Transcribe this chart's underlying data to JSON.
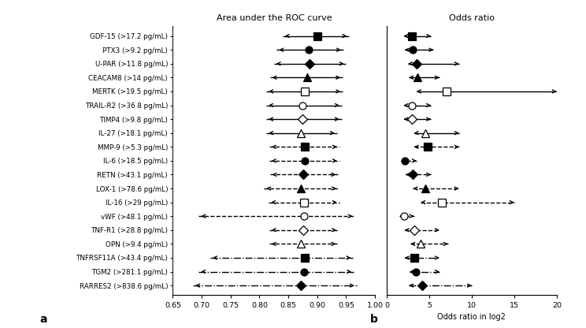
{
  "labels": [
    "GDF-15 (>17.2 pg/mL)",
    "PTX3 (>9.2 pg/mL)",
    "U-PAR (>11.8 pg/mL)",
    "CEACAM8 (>14 pg/mL)",
    "MERTK (>19.5 pg/mL)",
    "TRAIL-R2 (>36.8 pg/mL)",
    "TIMP4 (>9.8 pg/mL)",
    "IL-27 (>18.1 pg/mL)",
    "MMP-9 (>5.3 pg/mL)",
    "IL-6 (>18.5 pg/mL)",
    "RETN (>43.1 pg/mL)",
    "LOX-1 (>78.6 pg/mL)",
    "IL-16 (>29 pg/mL)",
    "vWF (>48.1 pg/mL)",
    "TNF-R1 (>28.8 pg/mL)",
    "OPN (>9.4 pg/mL)",
    "TNFRSF11A (>43.4 pg/mL)",
    "TGM2 (>281.1 pg/mL)",
    "RARRES2 (>838.6 pg/mL)"
  ],
  "auc_center": [
    0.9,
    0.885,
    0.887,
    0.882,
    0.878,
    0.875,
    0.875,
    0.872,
    0.878,
    0.878,
    0.876,
    0.872,
    0.877,
    0.877,
    0.876,
    0.872,
    0.878,
    0.877,
    0.871
  ],
  "auc_lo": [
    0.84,
    0.83,
    0.825,
    0.818,
    0.812,
    0.812,
    0.812,
    0.812,
    0.817,
    0.817,
    0.818,
    0.808,
    0.816,
    0.695,
    0.817,
    0.817,
    0.715,
    0.695,
    0.685
  ],
  "auc_hi": [
    0.955,
    0.945,
    0.95,
    0.944,
    0.944,
    0.942,
    0.942,
    0.934,
    0.938,
    0.938,
    0.936,
    0.937,
    0.938,
    0.965,
    0.937,
    0.936,
    0.962,
    0.963,
    0.968
  ],
  "or_center": [
    3.0,
    3.1,
    3.5,
    3.6,
    7.0,
    3.0,
    3.0,
    4.5,
    4.8,
    2.1,
    3.1,
    4.5,
    6.5,
    2.0,
    3.2,
    4.0,
    3.2,
    3.4,
    4.2
  ],
  "or_lo": [
    2.0,
    2.1,
    2.5,
    2.6,
    3.5,
    2.0,
    2.0,
    3.2,
    3.2,
    1.7,
    2.2,
    3.1,
    4.0,
    1.5,
    2.1,
    2.8,
    2.1,
    2.7,
    2.6
  ],
  "or_hi": [
    5.2,
    5.5,
    8.5,
    6.2,
    20.0,
    5.2,
    5.2,
    8.5,
    8.5,
    3.5,
    5.2,
    8.5,
    15.0,
    3.2,
    6.2,
    7.2,
    6.2,
    6.2,
    10.0
  ],
  "markers": [
    "s",
    "o",
    "D",
    "^",
    "s",
    "o",
    "D",
    "^",
    "s",
    "o",
    "D",
    "^",
    "s",
    "o",
    "D",
    "^",
    "s",
    "o",
    "D"
  ],
  "filled": [
    true,
    true,
    true,
    true,
    false,
    false,
    false,
    false,
    true,
    true,
    true,
    true,
    false,
    false,
    false,
    false,
    true,
    true,
    true
  ],
  "linestyles": [
    "solid",
    "solid",
    "solid",
    "solid",
    "solid",
    "solid",
    "solid",
    "solid",
    "dashed",
    "dashed",
    "dashed",
    "dashed",
    "dashed",
    "dashed",
    "dashed",
    "dashed",
    "dashdot",
    "dashdot",
    "dashdot"
  ],
  "panel_a_title": "Area under the ROC curve",
  "panel_b_title": "Odds ratio",
  "xlabel_b": "Odds ratio in log2",
  "xlim_a": [
    0.65,
    1.0
  ],
  "xlim_b": [
    0,
    20
  ],
  "xticks_a": [
    0.65,
    0.7,
    0.75,
    0.8,
    0.85,
    0.9,
    0.95,
    1.0
  ],
  "xticks_a_labels": [
    "0.65",
    "0.70",
    "0.75",
    "0.80",
    "0.85",
    "0.90",
    "0.95",
    "1.00"
  ],
  "xticks_b": [
    0,
    5,
    10,
    15,
    20
  ],
  "xticks_b_labels": [
    "0",
    "5",
    "10",
    "15",
    "20"
  ],
  "label_a": "a",
  "label_b": "b",
  "marker_size": 6.5,
  "line_width": 1.0,
  "arrow_mutation": 7
}
